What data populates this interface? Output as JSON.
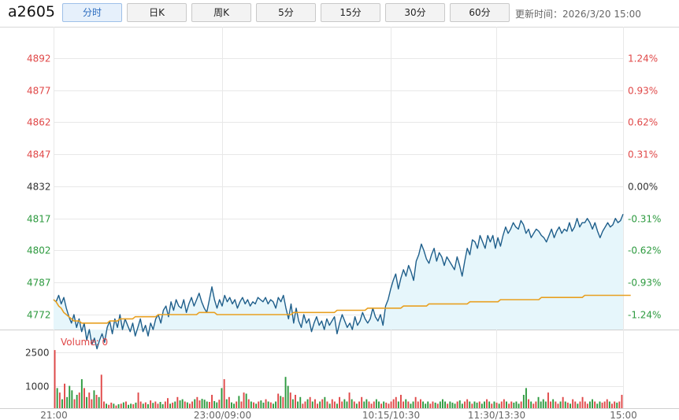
{
  "toolbar": {
    "symbol": "a2605",
    "periods": [
      "分时",
      "日K",
      "周K",
      "5分",
      "15分",
      "30分",
      "60分"
    ],
    "active_period": "分时",
    "updated": "更新时间：2026/3/20 15:00"
  },
  "colors": {
    "price_line": "#1f5f8b",
    "avg_line": "#e8a021",
    "area_fill": "#e6f6fb",
    "up": "#e04848",
    "down": "#2d9a3f",
    "flat": "#333333",
    "grid": "#e8e8e8"
  },
  "chart_data": [
    {
      "type": "line",
      "title": "",
      "y_ticks": [
        4892,
        4877,
        4862,
        4847,
        4832,
        4817,
        4802,
        4787,
        4772
      ],
      "pct_ticks": [
        "1.24%",
        "0.93%",
        "0.62%",
        "0.31%",
        "0.00%",
        "-0.31%",
        "-0.62%",
        "-0.93%",
        "-1.24%"
      ],
      "ylim": [
        4765,
        4903
      ],
      "reference_price": 4832,
      "session_sizes": [
        120,
        120,
        75,
        90
      ],
      "x_labels": [
        "21:00",
        "23:00/09:00",
        "10:15/10:30",
        "11:30/13:30",
        "15:00"
      ],
      "series": [
        {
          "key": "price",
          "values": [
            4779,
            4778,
            4781,
            4777,
            4780,
            4775,
            4771,
            4768,
            4772,
            4766,
            4770,
            4764,
            4768,
            4760,
            4765,
            4758,
            4761,
            4756,
            4760,
            4763,
            4759,
            4766,
            4769,
            4763,
            4770,
            4766,
            4772,
            4765,
            4770,
            4767,
            4764,
            4768,
            4762,
            4766,
            4770,
            4764,
            4767,
            4762,
            4768,
            4765,
            4770,
            4772,
            4768,
            4774,
            4776,
            4771,
            4778,
            4774,
            4779,
            4776,
            4775,
            4779,
            4773,
            4777,
            4780,
            4776,
            4779,
            4782,
            4778,
            4775,
            4773,
            4779,
            4785,
            4779,
            4775,
            4779,
            4776,
            4781,
            4778,
            4780,
            4777,
            4779,
            4775,
            4778,
            4780,
            4777,
            4779,
            4776,
            4778,
            4777,
            4780,
            4779,
            4778,
            4780,
            4777,
            4779,
            4778,
            4775,
            4780,
            4778,
            4781,
            4775,
            4770,
            4777,
            4768,
            4775,
            4769,
            4766,
            4772,
            4768,
            4770,
            4764,
            4768,
            4771,
            4767,
            4769,
            4765,
            4770,
            4767,
            4769,
            4771,
            4763,
            4768,
            4772,
            4769,
            4766,
            4768,
            4765,
            4771,
            4767,
            4769,
            4773,
            4770,
            4768,
            4770,
            4775,
            4771,
            4769,
            4772,
            4767,
            4776,
            4779,
            4784,
            4788,
            4791,
            4784,
            4789,
            4793,
            4790,
            4795,
            4792,
            4788,
            4797,
            4800,
            4805,
            4802,
            4798,
            4796,
            4800,
            4803,
            4797,
            4801,
            4799,
            4795,
            4799,
            4797,
            4795,
            4793,
            4799,
            4795,
            4790,
            4797,
            4803,
            4800,
            4807,
            4806,
            4803,
            4809,
            4806,
            4803,
            4809,
            4806,
            4809,
            4803,
            4808,
            4804,
            4809,
            4813,
            4810,
            4812,
            4815,
            4813,
            4812,
            4816,
            4814,
            4810,
            4812,
            4808,
            4810,
            4812,
            4811,
            4809,
            4808,
            4806,
            4809,
            4812,
            4808,
            4811,
            4813,
            4810,
            4812,
            4811,
            4815,
            4811,
            4813,
            4817,
            4813,
            4815,
            4815,
            4817,
            4815,
            4812,
            4815,
            4811,
            4808,
            4811,
            4813,
            4815,
            4813,
            4814,
            4817,
            4815,
            4816,
            4819
          ],
          "color": "#1f5f8b"
        },
        {
          "key": "avg",
          "values": [
            4779,
            4778,
            4776,
            4775,
            4773,
            4772,
            4771,
            4770,
            4769,
            4769,
            4769,
            4768,
            4768,
            4768,
            4768,
            4768,
            4768,
            4768,
            4768,
            4768,
            4768,
            4768,
            4769,
            4769,
            4769,
            4769,
            4770,
            4770,
            4770,
            4770,
            4770,
            4770,
            4771,
            4771,
            4771,
            4771,
            4771,
            4771,
            4771,
            4771,
            4771,
            4772,
            4772,
            4772,
            4772,
            4772,
            4772,
            4772,
            4772,
            4772,
            4772,
            4772,
            4772,
            4772,
            4772,
            4772,
            4772,
            4773,
            4773,
            4773,
            4773,
            4773,
            4773,
            4773,
            4772,
            4772,
            4772,
            4772,
            4772,
            4772,
            4772,
            4772,
            4772,
            4772,
            4772,
            4772,
            4772,
            4772,
            4772,
            4772,
            4772,
            4772,
            4772,
            4772,
            4772,
            4772,
            4772,
            4772,
            4772,
            4772,
            4772,
            4772,
            4772,
            4772,
            4773,
            4773,
            4773,
            4773,
            4773,
            4773,
            4773,
            4773,
            4773,
            4773,
            4773,
            4773,
            4773,
            4773,
            4773,
            4773,
            4773,
            4774,
            4774,
            4774,
            4774,
            4774,
            4774,
            4774,
            4774,
            4774,
            4774,
            4774,
            4774,
            4775,
            4775,
            4775,
            4775,
            4775,
            4775,
            4775,
            4775,
            4775,
            4775,
            4775,
            4775,
            4775,
            4775,
            4776,
            4776,
            4776,
            4776,
            4776,
            4776,
            4776,
            4776,
            4776,
            4776,
            4777,
            4777,
            4777,
            4777,
            4777,
            4777,
            4777,
            4777,
            4777,
            4777,
            4777,
            4777,
            4777,
            4777,
            4777,
            4777,
            4778,
            4778,
            4778,
            4778,
            4778,
            4778,
            4778,
            4778,
            4778,
            4778,
            4778,
            4778,
            4779,
            4779,
            4779,
            4779,
            4779,
            4779,
            4779,
            4779,
            4779,
            4779,
            4779,
            4779,
            4779,
            4779,
            4779,
            4779,
            4780,
            4780,
            4780,
            4780,
            4780,
            4780,
            4780,
            4780,
            4780,
            4780,
            4780,
            4780,
            4780,
            4780,
            4780,
            4780,
            4780,
            4781,
            4781,
            4781,
            4781,
            4781,
            4781,
            4781,
            4781,
            4781,
            4781,
            4781,
            4781,
            4781,
            4781,
            4781,
            4781,
            4781,
            4781,
            4781
          ],
          "color": "#e8a021"
        }
      ]
    },
    {
      "type": "bar",
      "title": "",
      "volume_label": "Volume: 0",
      "y_ticks": [
        2500,
        1000
      ],
      "ylim": [
        0,
        3450
      ],
      "values": [
        2600,
        900,
        700,
        400,
        1100,
        500,
        1000,
        800,
        400,
        600,
        700,
        1300,
        900,
        500,
        700,
        400,
        800,
        600,
        500,
        1500,
        300,
        200,
        150,
        250,
        200,
        120,
        180,
        200,
        260,
        300,
        150,
        200,
        180,
        250,
        700,
        300,
        200,
        260,
        180,
        350,
        240,
        300,
        200,
        280,
        180,
        300,
        450,
        200,
        250,
        300,
        500,
        350,
        400,
        300,
        260,
        200,
        300,
        400,
        500,
        350,
        420,
        380,
        300,
        280,
        600,
        320,
        260,
        380,
        900,
        1300,
        400,
        500,
        260,
        200,
        300,
        550,
        300,
        700,
        650,
        400,
        300,
        260,
        200,
        300,
        350,
        250,
        400,
        300,
        260,
        200,
        300,
        650,
        550,
        500,
        1400,
        1000,
        700,
        400,
        600,
        300,
        500,
        200,
        300,
        400,
        500,
        300,
        400,
        200,
        300,
        400,
        500,
        300,
        200,
        400,
        300,
        200,
        500,
        300,
        400,
        300,
        700,
        400,
        300,
        200,
        300,
        500,
        300,
        400,
        300,
        200,
        300,
        400,
        300,
        200,
        300,
        250,
        200,
        300,
        400,
        500,
        300,
        600,
        300,
        400,
        300,
        200,
        300,
        500,
        300,
        400,
        300,
        200,
        300,
        200,
        300,
        250,
        200,
        300,
        400,
        300,
        200,
        300,
        250,
        200,
        300,
        350,
        200,
        300,
        400,
        300,
        200,
        300,
        250,
        300,
        200,
        300,
        400,
        300,
        200,
        300,
        250,
        200,
        300,
        400,
        300,
        200,
        300,
        250,
        300,
        200,
        300,
        600,
        900,
        400,
        300,
        200,
        300,
        500,
        300,
        400,
        300,
        700,
        300,
        400,
        300,
        200,
        300,
        500,
        300,
        250,
        200,
        400,
        300,
        200,
        300,
        500,
        300,
        200,
        300,
        400,
        300,
        200,
        300,
        250,
        300,
        400,
        300,
        200,
        300,
        250,
        300,
        600
      ]
    }
  ]
}
